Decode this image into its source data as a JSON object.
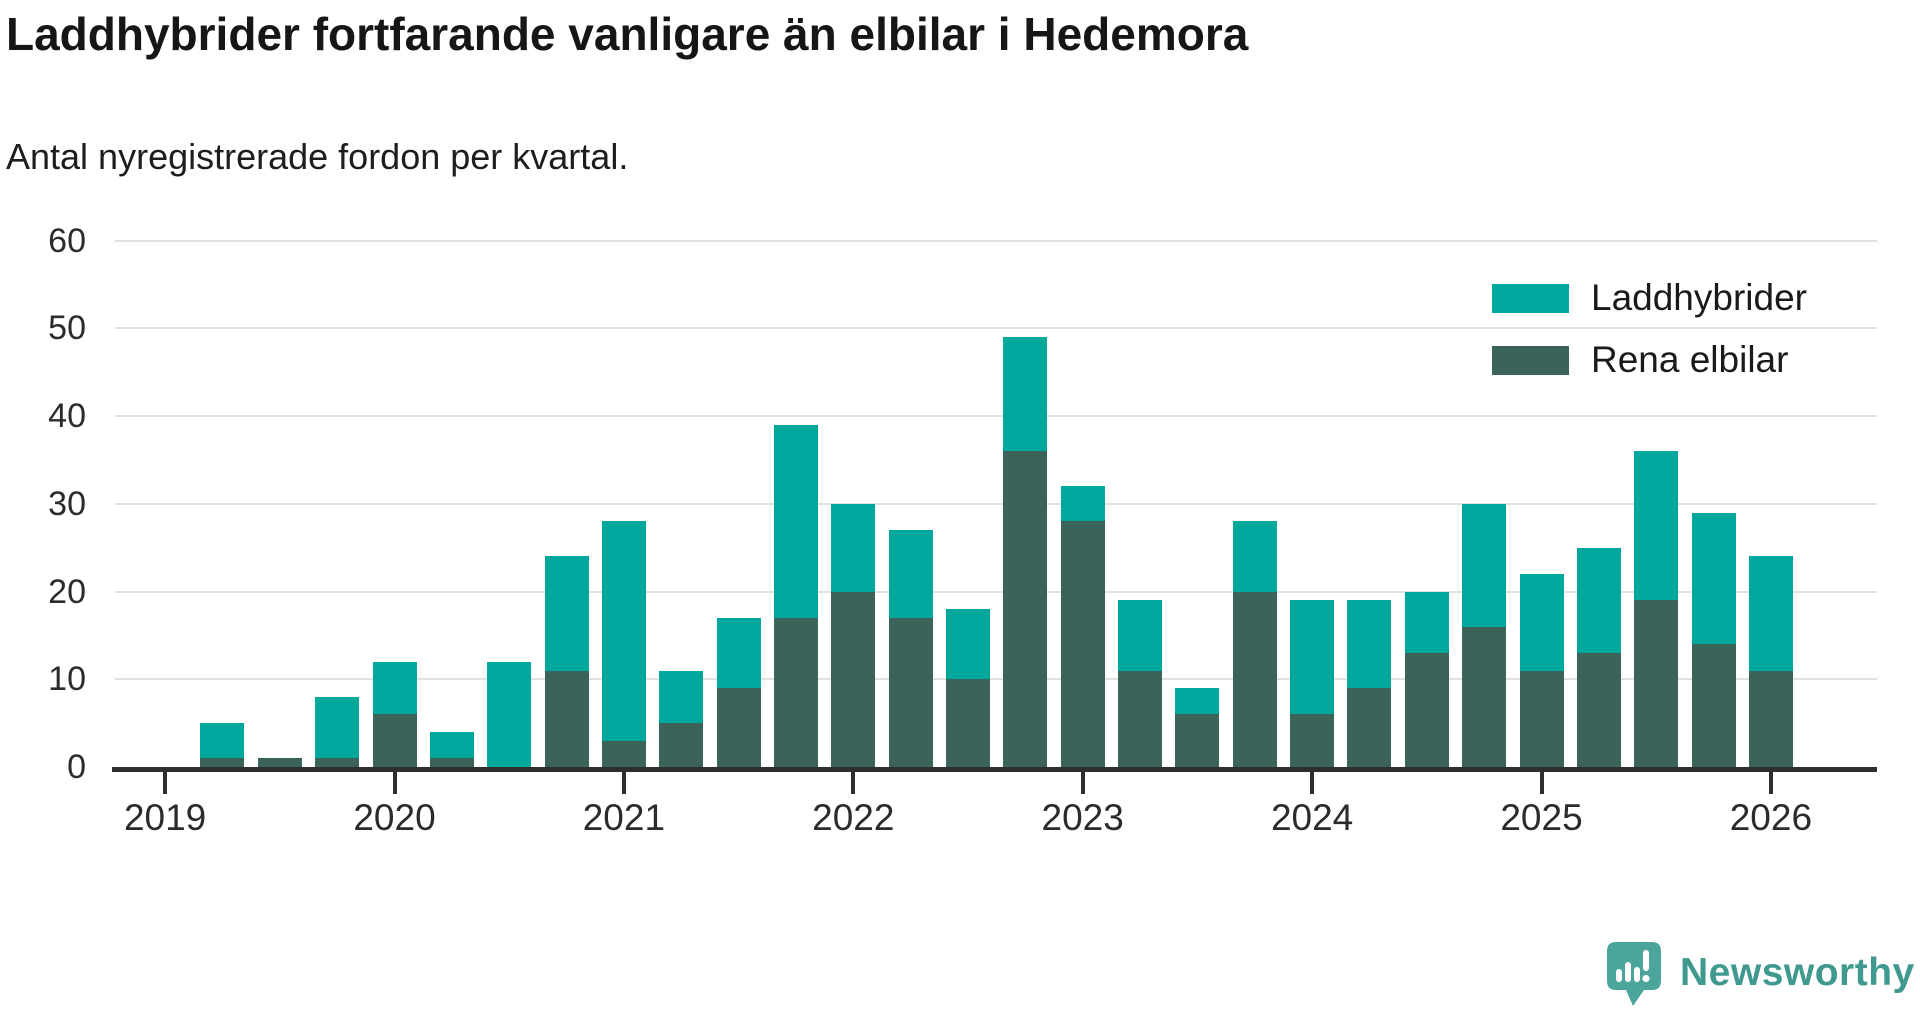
{
  "title": "Laddhybrider fortfarande vanligare än elbilar i Hedemora",
  "subtitle": "Antal nyregistrerade fordon per kvartal.",
  "legend": {
    "items": [
      {
        "label": "Laddhybrider",
        "color": "#00a79c"
      },
      {
        "label": "Rena elbilar",
        "color": "#3a6459"
      }
    ]
  },
  "footer": {
    "brand": "Newsworthy",
    "brand_color": "#3f998f",
    "icon": "newsworthy-logo-icon",
    "icon_color": "#4ba59b"
  },
  "chart_data": {
    "type": "bar",
    "stacked": true,
    "title": "Laddhybrider fortfarande vanligare än elbilar i Hedemora",
    "subtitle": "Antal nyregistrerade fordon per kvartal.",
    "categories": [
      "2019 Q1",
      "2019 Q2",
      "2019 Q3",
      "2019 Q4",
      "2020 Q1",
      "2020 Q2",
      "2020 Q3",
      "2020 Q4",
      "2021 Q1",
      "2021 Q2",
      "2021 Q3",
      "2021 Q4",
      "2022 Q1",
      "2022 Q2",
      "2022 Q3",
      "2022 Q4",
      "2023 Q1",
      "2023 Q2",
      "2023 Q3",
      "2023 Q4",
      "2024 Q1",
      "2024 Q2",
      "2024 Q3",
      "2024 Q4",
      "2025 Q1",
      "2025 Q2",
      "2025 Q3",
      "2025 Q4",
      "2026 Q1"
    ],
    "series": [
      {
        "name": "Rena elbilar",
        "color": "#3a6459",
        "values": [
          0,
          1,
          1,
          1,
          6,
          1,
          0,
          11,
          3,
          5,
          9,
          17,
          20,
          17,
          10,
          36,
          28,
          11,
          6,
          20,
          6,
          9,
          13,
          16,
          11,
          13,
          19,
          14,
          11
        ]
      },
      {
        "name": "Laddhybrider",
        "color": "#00a79c",
        "values": [
          0,
          4,
          0,
          7,
          6,
          3,
          12,
          13,
          25,
          6,
          8,
          22,
          10,
          10,
          8,
          13,
          4,
          8,
          3,
          8,
          13,
          10,
          7,
          14,
          11,
          12,
          17,
          15,
          13
        ]
      }
    ],
    "totals": [
      0,
      5,
      1,
      8,
      12,
      4,
      12,
      24,
      28,
      11,
      17,
      39,
      30,
      27,
      18,
      49,
      32,
      19,
      9,
      28,
      19,
      19,
      20,
      30,
      22,
      25,
      36,
      29,
      24
    ],
    "x_tick_labels": [
      "2019",
      "2020",
      "2021",
      "2022",
      "2023",
      "2024",
      "2025",
      "2026"
    ],
    "y_ticks": [
      0,
      10,
      20,
      30,
      40,
      50,
      60
    ],
    "ylim": [
      0,
      60
    ],
    "grid": "horizontal-only",
    "legend_position": "top-right"
  }
}
